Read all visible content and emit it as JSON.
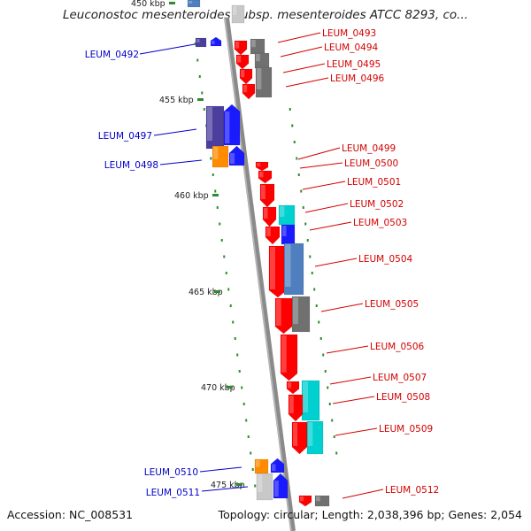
{
  "title": "Leuconostoc mesenteroides subsp. mesenteroides ATCC 8293, co...",
  "accession_text": "Accession: NC_008531",
  "topology_text": "Topology: circular; Length: 2,038,396 bp; Genes: 2,054",
  "colors": {
    "backbone": "#8a8a8a",
    "tick": "#2e8b2e",
    "label_left": "#0000c8",
    "label_right": "#d40000",
    "gene_red": "#ff0000",
    "gene_blue": "#1a1aff",
    "gene_navy": "#4b3f9e",
    "gene_orange": "#ff8c00",
    "gene_cyan": "#00d0d0",
    "gene_steel": "#4f7fbf",
    "gene_gray": "#707070",
    "gene_lightgray": "#c8c8c8"
  },
  "scale_labels": [
    "450 kbp",
    "455 kbp",
    "460 kbp",
    "465 kbp",
    "470 kbp",
    "475 kbp"
  ],
  "gene_labels_left": [
    "LEUM_0492",
    "LEUM_0497",
    "LEUM_0498",
    "LEUM_0510",
    "LEUM_0511"
  ],
  "gene_labels_right": [
    "LEUM_0493",
    "LEUM_0494",
    "LEUM_0495",
    "LEUM_0496",
    "LEUM_0499",
    "LEUM_0500",
    "LEUM_0501",
    "LEUM_0502",
    "LEUM_0503",
    "LEUM_0504",
    "LEUM_0505",
    "LEUM_0506",
    "LEUM_0507",
    "LEUM_0508",
    "LEUM_0509",
    "LEUM_0512"
  ]
}
